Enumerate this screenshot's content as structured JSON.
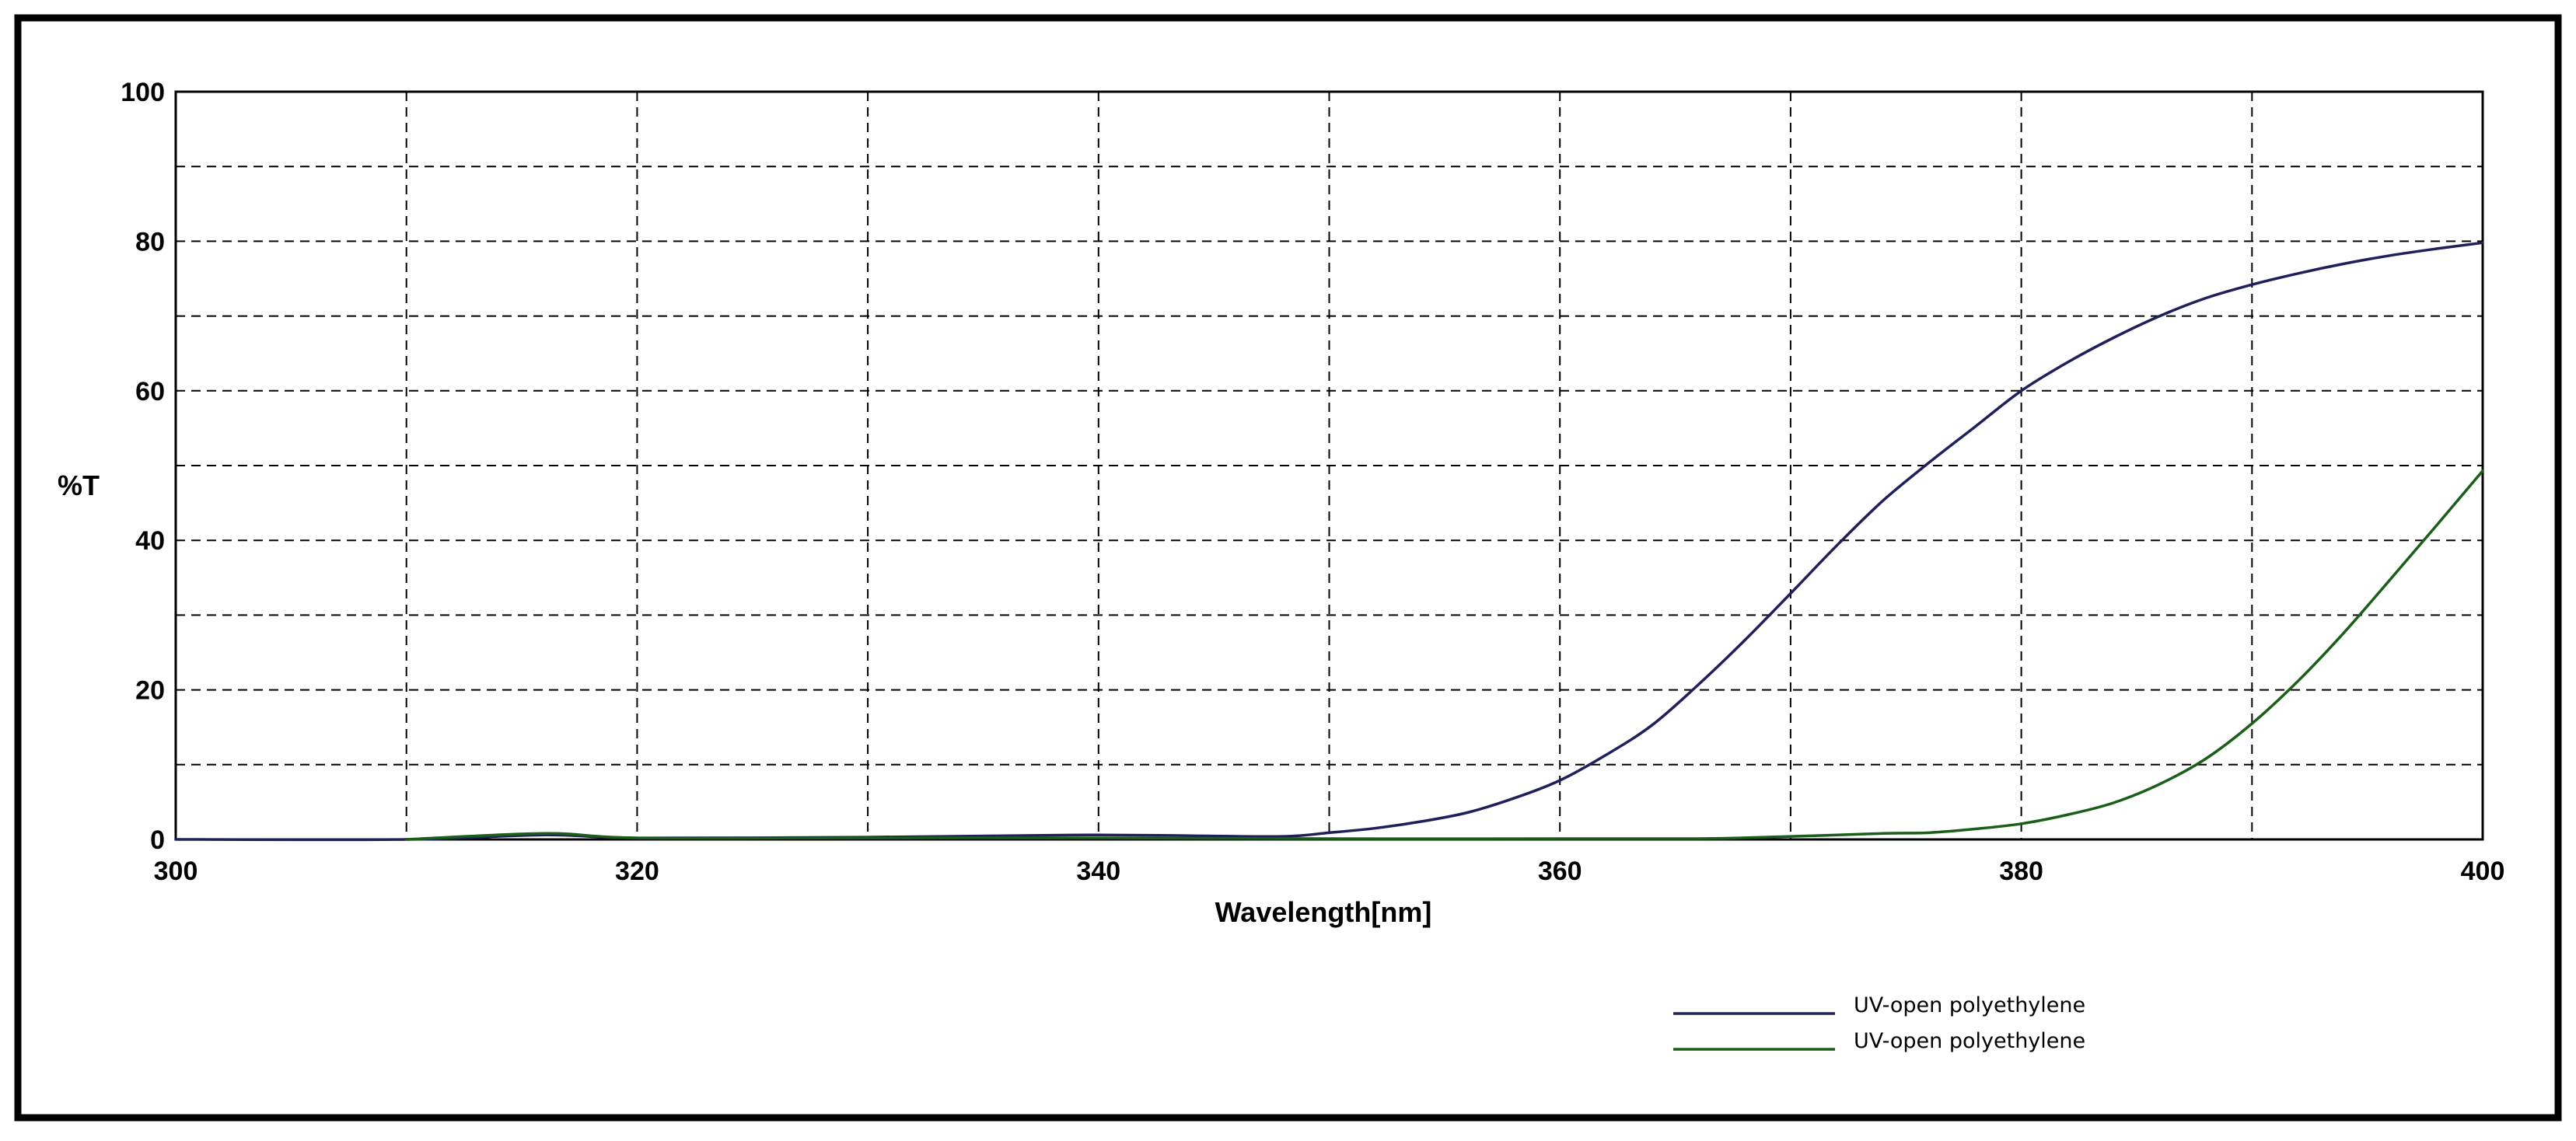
{
  "chart_data": {
    "type": "line",
    "title": "",
    "xlabel": "Wavelength[nm]",
    "ylabel": "%T",
    "xlim": [
      300,
      400
    ],
    "ylim": [
      0,
      100
    ],
    "x_ticks": [
      300,
      320,
      340,
      360,
      380,
      400
    ],
    "x_tick_labels": [
      "300",
      "320",
      "340",
      "360",
      "380",
      "400"
    ],
    "y_ticks": [
      0,
      20,
      40,
      60,
      80,
      100
    ],
    "y_tick_labels": [
      "0",
      "20",
      "40",
      "60",
      "80",
      "100"
    ],
    "grid": true,
    "grid_style": "dashed",
    "legend_position": "bottom-right, below plot",
    "series": [
      {
        "name": "UV-open polyethylene",
        "color": "#1f1f5a",
        "x": [
          300,
          310,
          316,
          320,
          330,
          336,
          340,
          344,
          348,
          350,
          352,
          354,
          356,
          358,
          360,
          362,
          364,
          366,
          368,
          370,
          372,
          374,
          376,
          378,
          380,
          382,
          384,
          386,
          388,
          390,
          392,
          394,
          396,
          398,
          400
        ],
        "y": [
          0,
          0,
          0.6,
          0.2,
          0.3,
          0.5,
          0.6,
          0.5,
          0.4,
          0.9,
          1.5,
          2.4,
          3.6,
          5.5,
          7.9,
          11.3,
          15.3,
          20.7,
          26.6,
          32.9,
          39.3,
          45.3,
          50.4,
          55.2,
          60.0,
          63.8,
          67.1,
          70.0,
          72.4,
          74.2,
          75.7,
          77.0,
          78.1,
          79.0,
          79.8
        ]
      },
      {
        "name": "UV-open polyethylene",
        "color": "#1a5e1a",
        "x": [
          310,
          316,
          320,
          330,
          340,
          350,
          360,
          366,
          370,
          374,
          376,
          378,
          380,
          382,
          384,
          386,
          388,
          390,
          392,
          394,
          396,
          398,
          400
        ],
        "y": [
          0,
          0.8,
          0.2,
          0.2,
          0.2,
          0.1,
          0.1,
          0.1,
          0.4,
          0.8,
          0.9,
          1.4,
          2.1,
          3.3,
          4.9,
          7.4,
          10.8,
          15.5,
          21.2,
          27.7,
          34.8,
          42.0,
          49.3
        ]
      }
    ]
  }
}
